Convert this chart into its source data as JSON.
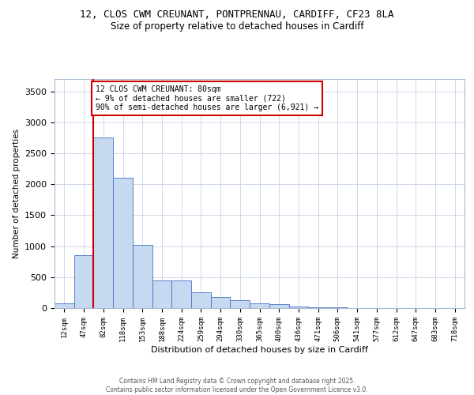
{
  "title_line1": "12, CLOS CWM CREUNANT, PONTPRENNAU, CARDIFF, CF23 8LA",
  "title_line2": "Size of property relative to detached houses in Cardiff",
  "xlabel": "Distribution of detached houses by size in Cardiff",
  "ylabel": "Number of detached properties",
  "bins": [
    "12sqm",
    "47sqm",
    "82sqm",
    "118sqm",
    "153sqm",
    "188sqm",
    "224sqm",
    "259sqm",
    "294sqm",
    "330sqm",
    "365sqm",
    "400sqm",
    "436sqm",
    "471sqm",
    "506sqm",
    "541sqm",
    "577sqm",
    "612sqm",
    "647sqm",
    "683sqm",
    "718sqm"
  ],
  "bar_values": [
    80,
    850,
    2750,
    2100,
    1025,
    450,
    450,
    250,
    175,
    125,
    80,
    60,
    25,
    15,
    8,
    5,
    3,
    2,
    1,
    1,
    1
  ],
  "bar_color": "#c6d9f0",
  "bar_edge_color": "#4472c4",
  "vline_x_index": 2,
  "vline_color": "#cc0000",
  "annotation_line1": "12 CLOS CWM CREUNANT: 80sqm",
  "annotation_line2": "← 9% of detached houses are smaller (722)",
  "annotation_line3": "90% of semi-detached houses are larger (6,921) →",
  "annotation_box_color": "#ffffff",
  "annotation_box_edge": "#cc0000",
  "ylim": [
    0,
    3700
  ],
  "yticks": [
    0,
    500,
    1000,
    1500,
    2000,
    2500,
    3000,
    3500
  ],
  "footer1": "Contains HM Land Registry data © Crown copyright and database right 2025.",
  "footer2": "Contains public sector information licensed under the Open Government Licence v3.0.",
  "background_color": "#ffffff",
  "grid_color": "#cdd8ea"
}
